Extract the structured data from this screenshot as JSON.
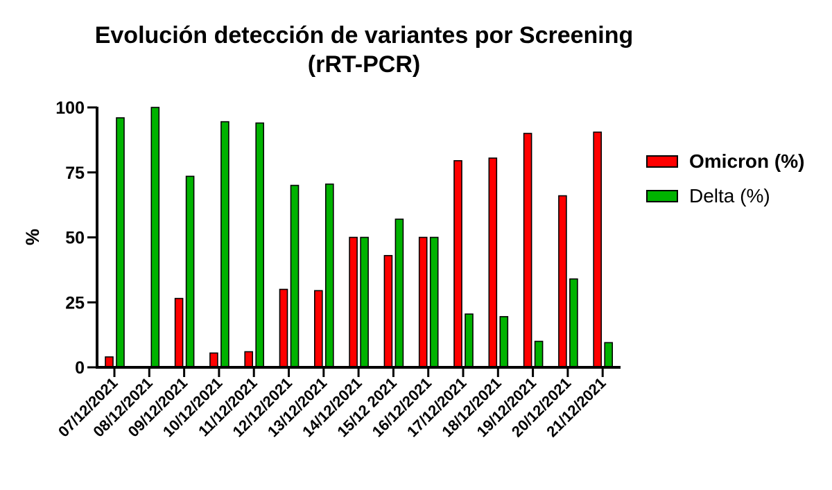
{
  "chart_data": {
    "type": "bar",
    "title": [
      "Evolución detección de variantes por Screening",
      "(rRT-PCR)"
    ],
    "xlabel": "",
    "ylabel": "%",
    "ylim": [
      0,
      100
    ],
    "yticks": [
      "0",
      "25",
      "50",
      "75",
      "100"
    ],
    "categories": [
      "07/12/2021",
      "08/12/2021",
      "09/12/2021",
      "10/12/2021",
      "11/12/2021",
      "12/12/2021",
      "13/12/2021",
      "14/12/2021",
      "15/12 2021",
      "16/12/2021",
      "17/12/2021",
      "18/12/2021",
      "19/12/2021",
      "20/12/2021",
      "21/12/2021"
    ],
    "series": [
      {
        "name": "Omicron (%)",
        "color": "#ff0000",
        "values": [
          4,
          0,
          26.5,
          5.5,
          6,
          30,
          29.5,
          50,
          43,
          50,
          79.5,
          80.5,
          90,
          66,
          90.5
        ]
      },
      {
        "name": "Delta (%)",
        "color": "#00b300",
        "values": [
          96,
          100,
          73.5,
          94.5,
          94,
          70,
          70.5,
          50,
          57,
          50,
          20.5,
          19.5,
          10,
          34,
          9.5
        ]
      }
    ],
    "legend_position": "right",
    "grid": false
  }
}
